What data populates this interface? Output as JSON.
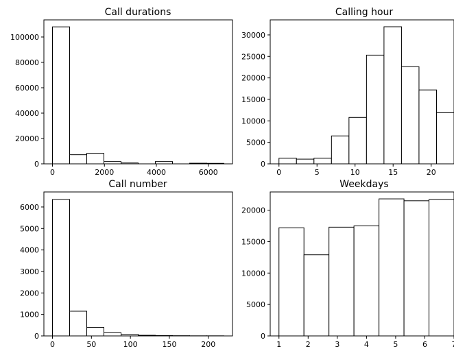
{
  "figure": {
    "background": "#ffffff",
    "bar_fill": "#ffffff",
    "bar_edge": "#000000"
  },
  "chart_data": [
    {
      "type": "bar",
      "title": "Call durations",
      "xlabel": "",
      "ylabel": "",
      "xlim": [
        -330,
        6930
      ],
      "ylim": [
        0,
        113500
      ],
      "xticks": [
        0,
        2000,
        4000,
        6000
      ],
      "xtick_labels": [
        "0",
        "2000",
        "4000",
        "6000"
      ],
      "yticks": [
        0,
        20000,
        40000,
        60000,
        80000,
        100000
      ],
      "ytick_labels": [
        "0",
        "20000",
        "40000",
        "60000",
        "80000",
        "100000"
      ],
      "bin_edges": [
        0,
        660,
        1320,
        1980,
        2640,
        3300,
        3960,
        4620,
        5280,
        5940,
        6600
      ],
      "values": [
        108000,
        7200,
        8300,
        1800,
        700,
        0,
        1800,
        0,
        500,
        400
      ]
    },
    {
      "type": "bar",
      "title": "Calling hour",
      "xlabel": "",
      "ylabel": "",
      "xlim": [
        -1.15,
        23.0
      ],
      "ylim": [
        0,
        33500
      ],
      "xticks": [
        0,
        5,
        10,
        15,
        20
      ],
      "xtick_labels": [
        "0",
        "5",
        "10",
        "15",
        "20"
      ],
      "yticks": [
        0,
        5000,
        10000,
        15000,
        20000,
        25000,
        30000
      ],
      "ytick_labels": [
        "0",
        "5000",
        "10000",
        "15000",
        "20000",
        "25000",
        "30000"
      ],
      "bin_edges": [
        0,
        2.3,
        4.6,
        6.9,
        9.2,
        11.5,
        13.8,
        16.1,
        18.4,
        20.7,
        23.0
      ],
      "values": [
        1300,
        1100,
        1300,
        6500,
        10800,
        25300,
        31900,
        22600,
        17200,
        11900
      ]
    },
    {
      "type": "bar",
      "title": "Call number",
      "xlabel": "",
      "ylabel": "",
      "xlim": [
        -11,
        231
      ],
      "ylim": [
        0,
        6700
      ],
      "xticks": [
        0,
        50,
        100,
        150,
        200
      ],
      "xtick_labels": [
        "0",
        "50",
        "100",
        "150",
        "200"
      ],
      "yticks": [
        0,
        1000,
        2000,
        3000,
        4000,
        5000,
        6000
      ],
      "ytick_labels": [
        "0",
        "1000",
        "2000",
        "3000",
        "4000",
        "5000",
        "6000"
      ],
      "bin_edges": [
        0,
        22,
        44,
        66,
        88,
        110,
        132,
        154,
        176,
        198,
        220
      ],
      "values": [
        6350,
        1150,
        400,
        150,
        70,
        30,
        15,
        10,
        5,
        5
      ]
    },
    {
      "type": "bar",
      "title": "Weekdays",
      "xlabel": "",
      "ylabel": "",
      "xlim": [
        0.7,
        7.0
      ],
      "ylim": [
        0,
        22900
      ],
      "xticks": [
        1,
        2,
        3,
        4,
        5,
        6,
        7
      ],
      "xtick_labels": [
        "1",
        "2",
        "3",
        "4",
        "5",
        "6",
        "7"
      ],
      "yticks": [
        0,
        5000,
        10000,
        15000,
        20000
      ],
      "ytick_labels": [
        "0",
        "5000",
        "10000",
        "15000",
        "20000"
      ],
      "bin_edges": [
        1.0,
        1.857,
        2.714,
        3.571,
        4.429,
        5.286,
        6.143,
        7.0
      ],
      "values": [
        17200,
        12900,
        17300,
        17500,
        21800,
        21500,
        21700
      ]
    }
  ]
}
